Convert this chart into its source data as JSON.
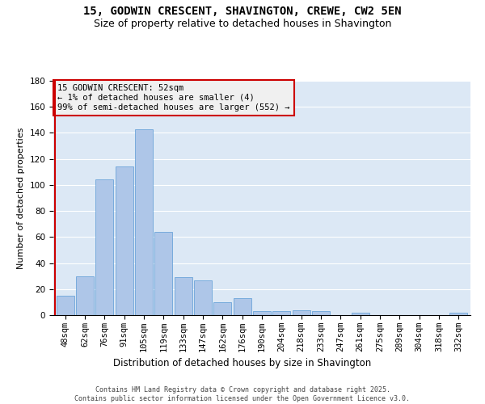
{
  "title": "15, GODWIN CRESCENT, SHAVINGTON, CREWE, CW2 5EN",
  "subtitle": "Size of property relative to detached houses in Shavington",
  "xlabel": "Distribution of detached houses by size in Shavington",
  "ylabel": "Number of detached properties",
  "bar_color": "#aec6e8",
  "bar_edge_color": "#5b9bd5",
  "bg_color": "#dce8f5",
  "grid_color": "white",
  "annotation_box_edge": "#cc0000",
  "annotation_text": "15 GODWIN CRESCENT: 52sqm\n← 1% of detached houses are smaller (4)\n99% of semi-detached houses are larger (552) →",
  "vline_color": "#cc0000",
  "categories": [
    "48sqm",
    "62sqm",
    "76sqm",
    "91sqm",
    "105sqm",
    "119sqm",
    "133sqm",
    "147sqm",
    "162sqm",
    "176sqm",
    "190sqm",
    "204sqm",
    "218sqm",
    "233sqm",
    "247sqm",
    "261sqm",
    "275sqm",
    "289sqm",
    "304sqm",
    "318sqm",
    "332sqm"
  ],
  "values": [
    15,
    30,
    104,
    114,
    143,
    64,
    29,
    27,
    10,
    13,
    3,
    3,
    4,
    3,
    0,
    2,
    0,
    0,
    0,
    0,
    2
  ],
  "ylim": [
    0,
    180
  ],
  "yticks": [
    0,
    20,
    40,
    60,
    80,
    100,
    120,
    140,
    160,
    180
  ],
  "footnote": "Contains HM Land Registry data © Crown copyright and database right 2025.\nContains public sector information licensed under the Open Government Licence v3.0.",
  "title_fontsize": 10,
  "subtitle_fontsize": 9,
  "ylabel_fontsize": 8,
  "xlabel_fontsize": 8.5,
  "tick_fontsize": 7.5,
  "footnote_fontsize": 6,
  "annot_fontsize": 7.5
}
